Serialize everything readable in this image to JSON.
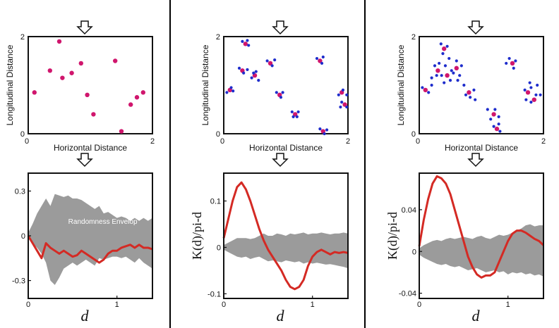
{
  "colors": {
    "points_parent": "#d0166d",
    "points_offspring": "#1e2dcc",
    "line": "#d42a24",
    "envelope": "#9b9b9b",
    "divider": "#000000"
  },
  "labels": {
    "ylabel_top": "Longitudinal Distance",
    "xlabel_top": "Horizontal Distance",
    "ylabel_bottom": "K(d)/pi-d",
    "xlabel_bottom": "d",
    "envelope_label": "Randomness Envelop"
  },
  "chart_data": [
    {
      "type": "scatter",
      "xlim": [
        0,
        2
      ],
      "ylim": [
        0,
        2
      ],
      "xticks": [
        "0",
        "2"
      ],
      "yticks": [
        "0",
        "2"
      ],
      "xlabel": "Horizontal Distance",
      "ylabel": "Longitudinal Distance",
      "series": [
        {
          "color": "parent",
          "points": [
            [
              0.1,
              0.85
            ],
            [
              0.35,
              1.3
            ],
            [
              0.5,
              1.9
            ],
            [
              0.55,
              1.15
            ],
            [
              0.7,
              1.25
            ],
            [
              0.85,
              1.45
            ],
            [
              0.95,
              0.8
            ],
            [
              1.05,
              0.4
            ],
            [
              1.4,
              1.5
            ],
            [
              1.5,
              0.05
            ],
            [
              1.65,
              0.6
            ],
            [
              1.75,
              0.75
            ],
            [
              1.85,
              0.85
            ]
          ]
        }
      ]
    },
    {
      "type": "scatter",
      "xlim": [
        0,
        2
      ],
      "ylim": [
        0,
        2
      ],
      "xticks": [
        "0",
        "2"
      ],
      "yticks": [
        "0",
        "2"
      ],
      "xlabel": "Horizontal Distance",
      "ylabel": "Longitudinal Distance",
      "series": [
        {
          "color": "parent",
          "points": [
            [
              0.1,
              0.9
            ],
            [
              0.3,
              1.3
            ],
            [
              0.5,
              1.2
            ],
            [
              0.75,
              1.45
            ],
            [
              0.9,
              0.8
            ],
            [
              1.15,
              0.4
            ],
            [
              1.55,
              1.5
            ],
            [
              1.6,
              0.05
            ],
            [
              1.9,
              0.85
            ],
            [
              1.95,
              0.6
            ],
            [
              0.35,
              1.85
            ]
          ]
        },
        {
          "color": "offspring",
          "points": [
            [
              0.05,
              0.85
            ],
            [
              0.12,
              0.95
            ],
            [
              0.15,
              0.88
            ],
            [
              0.25,
              1.35
            ],
            [
              0.32,
              1.25
            ],
            [
              0.38,
              1.32
            ],
            [
              0.45,
              1.15
            ],
            [
              0.52,
              1.28
            ],
            [
              0.56,
              1.1
            ],
            [
              0.48,
              1.25
            ],
            [
              0.7,
              1.5
            ],
            [
              0.78,
              1.4
            ],
            [
              0.82,
              1.52
            ],
            [
              0.85,
              0.85
            ],
            [
              0.92,
              0.75
            ],
            [
              0.95,
              0.85
            ],
            [
              1.1,
              0.45
            ],
            [
              1.18,
              0.35
            ],
            [
              1.2,
              0.45
            ],
            [
              1.12,
              0.35
            ],
            [
              1.5,
              1.55
            ],
            [
              1.58,
              1.45
            ],
            [
              1.6,
              1.58
            ],
            [
              1.55,
              0.1
            ],
            [
              1.62,
              0.0
            ],
            [
              1.66,
              0.08
            ],
            [
              1.85,
              0.8
            ],
            [
              1.92,
              0.9
            ],
            [
              1.98,
              0.8
            ],
            [
              1.9,
              0.65
            ],
            [
              1.98,
              0.55
            ],
            [
              1.88,
              0.55
            ],
            [
              0.3,
              1.9
            ],
            [
              0.4,
              1.82
            ],
            [
              0.38,
              1.92
            ]
          ]
        }
      ]
    },
    {
      "type": "scatter",
      "xlim": [
        0,
        2
      ],
      "ylim": [
        0,
        2
      ],
      "xticks": [
        "0",
        "2"
      ],
      "yticks": [
        "0",
        "2"
      ],
      "xlabel": "Horizontal Distance",
      "ylabel": "Longitudinal Distance",
      "series": [
        {
          "color": "parent",
          "points": [
            [
              0.1,
              0.9
            ],
            [
              0.3,
              1.3
            ],
            [
              0.45,
              1.2
            ],
            [
              0.6,
              1.35
            ],
            [
              0.8,
              0.85
            ],
            [
              1.2,
              0.4
            ],
            [
              1.5,
              1.45
            ],
            [
              1.25,
              0.1
            ],
            [
              1.75,
              0.85
            ],
            [
              1.85,
              0.7
            ],
            [
              0.4,
              1.75
            ]
          ]
        },
        {
          "color": "offspring",
          "points": [
            [
              0.05,
              0.95
            ],
            [
              0.15,
              0.85
            ],
            [
              0.2,
              1.0
            ],
            [
              0.25,
              1.4
            ],
            [
              0.32,
              1.45
            ],
            [
              0.36,
              1.2
            ],
            [
              0.28,
              1.2
            ],
            [
              0.4,
              1.05
            ],
            [
              0.5,
              1.1
            ],
            [
              0.52,
              1.3
            ],
            [
              0.42,
              1.4
            ],
            [
              0.6,
              1.5
            ],
            [
              0.65,
              1.2
            ],
            [
              0.68,
              1.4
            ],
            [
              0.55,
              1.25
            ],
            [
              0.72,
              1.0
            ],
            [
              0.75,
              0.8
            ],
            [
              0.82,
              0.75
            ],
            [
              0.88,
              0.9
            ],
            [
              0.9,
              0.7
            ],
            [
              1.1,
              0.5
            ],
            [
              1.15,
              0.3
            ],
            [
              1.22,
              0.5
            ],
            [
              1.28,
              0.35
            ],
            [
              1.45,
              1.55
            ],
            [
              1.55,
              1.5
            ],
            [
              1.52,
              1.35
            ],
            [
              1.4,
              1.45
            ],
            [
              1.2,
              0.15
            ],
            [
              1.3,
              0.05
            ],
            [
              1.28,
              0.2
            ],
            [
              1.7,
              0.9
            ],
            [
              1.8,
              0.95
            ],
            [
              1.88,
              0.8
            ],
            [
              1.72,
              0.7
            ],
            [
              1.8,
              0.65
            ],
            [
              1.9,
              1.0
            ],
            [
              1.95,
              0.8
            ],
            [
              1.78,
              1.05
            ],
            [
              0.35,
              1.85
            ],
            [
              0.45,
              1.8
            ],
            [
              0.38,
              1.65
            ],
            [
              0.48,
              1.55
            ],
            [
              0.2,
              1.15
            ],
            [
              0.62,
              1.1
            ]
          ]
        }
      ]
    },
    {
      "type": "line",
      "xlim": [
        0,
        1.4
      ],
      "ylim": [
        -0.42,
        0.42
      ],
      "yticks": [
        {
          "v": 0.3,
          "l": "0.3"
        },
        {
          "v": 0,
          "l": "0"
        },
        {
          "v": -0.3,
          "l": "-0.3"
        }
      ],
      "xticks": [
        {
          "v": 0,
          "l": "0"
        },
        {
          "v": 1,
          "l": "1"
        }
      ],
      "xlabel": "d",
      "envelope_label": "Randomness Envelop",
      "x": [
        0,
        0.05,
        0.1,
        0.15,
        0.2,
        0.25,
        0.3,
        0.35,
        0.4,
        0.45,
        0.5,
        0.55,
        0.6,
        0.65,
        0.7,
        0.75,
        0.8,
        0.85,
        0.9,
        0.95,
        1.0,
        1.05,
        1.1,
        1.15,
        1.2,
        1.25,
        1.3,
        1.35,
        1.4
      ],
      "values": [
        0,
        -0.05,
        -0.1,
        -0.15,
        -0.05,
        -0.08,
        -0.1,
        -0.12,
        -0.1,
        -0.12,
        -0.14,
        -0.13,
        -0.1,
        -0.12,
        -0.14,
        -0.16,
        -0.18,
        -0.16,
        -0.12,
        -0.1,
        -0.1,
        -0.08,
        -0.07,
        -0.06,
        -0.08,
        -0.06,
        -0.08,
        -0.08,
        -0.09
      ],
      "env_upper": [
        0.02,
        0.08,
        0.15,
        0.2,
        0.25,
        0.2,
        0.28,
        0.27,
        0.26,
        0.27,
        0.25,
        0.25,
        0.24,
        0.22,
        0.2,
        0.18,
        0.2,
        0.15,
        0.16,
        0.14,
        0.12,
        0.13,
        0.12,
        0.1,
        0.12,
        0.1,
        0.12,
        0.1,
        0.12
      ],
      "env_lower": [
        -0.02,
        -0.05,
        -0.08,
        -0.12,
        -0.18,
        -0.3,
        -0.33,
        -0.28,
        -0.22,
        -0.2,
        -0.18,
        -0.2,
        -0.18,
        -0.16,
        -0.18,
        -0.2,
        -0.15,
        -0.16,
        -0.15,
        -0.14,
        -0.14,
        -0.15,
        -0.14,
        -0.16,
        -0.18,
        -0.15,
        -0.18,
        -0.2,
        -0.22
      ]
    },
    {
      "type": "line",
      "xlim": [
        0,
        1.4
      ],
      "ylim": [
        -0.11,
        0.16
      ],
      "yticks": [
        {
          "v": 0.1,
          "l": "0.1"
        },
        {
          "v": 0,
          "l": "0"
        },
        {
          "v": -0.1,
          "l": "-0.1"
        }
      ],
      "xticks": [
        {
          "v": 0,
          "l": "0"
        },
        {
          "v": 1,
          "l": "1"
        }
      ],
      "xlabel": "d",
      "ylabel": "K(d)/pi-d",
      "x": [
        0,
        0.05,
        0.1,
        0.15,
        0.2,
        0.25,
        0.3,
        0.35,
        0.4,
        0.45,
        0.5,
        0.55,
        0.6,
        0.65,
        0.7,
        0.75,
        0.8,
        0.85,
        0.9,
        0.95,
        1.0,
        1.05,
        1.1,
        1.15,
        1.2,
        1.25,
        1.3,
        1.35,
        1.4
      ],
      "values": [
        0.02,
        0.06,
        0.1,
        0.13,
        0.14,
        0.125,
        0.1,
        0.07,
        0.04,
        0.015,
        -0.005,
        -0.02,
        -0.035,
        -0.05,
        -0.07,
        -0.085,
        -0.09,
        -0.085,
        -0.07,
        -0.04,
        -0.02,
        -0.01,
        -0.005,
        -0.01,
        -0.015,
        -0.01,
        -0.012,
        -0.01,
        -0.012
      ],
      "env_upper": [
        0.005,
        0.01,
        0.015,
        0.02,
        0.02,
        0.02,
        0.018,
        0.02,
        0.025,
        0.03,
        0.025,
        0.025,
        0.03,
        0.028,
        0.025,
        0.03,
        0.028,
        0.03,
        0.032,
        0.028,
        0.03,
        0.03,
        0.032,
        0.03,
        0.028,
        0.03,
        0.03,
        0.032,
        0.03
      ],
      "env_lower": [
        -0.005,
        -0.01,
        -0.015,
        -0.02,
        -0.022,
        -0.02,
        -0.025,
        -0.022,
        -0.02,
        -0.025,
        -0.03,
        -0.028,
        -0.03,
        -0.032,
        -0.028,
        -0.03,
        -0.032,
        -0.03,
        -0.035,
        -0.032,
        -0.035,
        -0.033,
        -0.035,
        -0.037,
        -0.036,
        -0.038,
        -0.04,
        -0.042,
        -0.045
      ]
    },
    {
      "type": "line",
      "xlim": [
        0,
        1.4
      ],
      "ylim": [
        -0.045,
        0.075
      ],
      "yticks": [
        {
          "v": 0.04,
          "l": "0.04"
        },
        {
          "v": 0,
          "l": "0"
        },
        {
          "v": -0.04,
          "l": "-0.04"
        }
      ],
      "xticks": [
        {
          "v": 0,
          "l": "0"
        },
        {
          "v": 1,
          "l": "1"
        }
      ],
      "xlabel": "d",
      "ylabel": "K(d)/pi-d",
      "x": [
        0,
        0.05,
        0.1,
        0.15,
        0.2,
        0.25,
        0.3,
        0.35,
        0.4,
        0.45,
        0.5,
        0.55,
        0.6,
        0.65,
        0.7,
        0.75,
        0.8,
        0.85,
        0.9,
        0.95,
        1.0,
        1.05,
        1.1,
        1.15,
        1.2,
        1.25,
        1.3,
        1.35,
        1.4
      ],
      "values": [
        0.005,
        0.03,
        0.05,
        0.065,
        0.072,
        0.07,
        0.065,
        0.055,
        0.04,
        0.025,
        0.01,
        -0.005,
        -0.015,
        -0.022,
        -0.025,
        -0.023,
        -0.023,
        -0.02,
        -0.01,
        0.0,
        0.01,
        0.017,
        0.02,
        0.02,
        0.018,
        0.015,
        0.012,
        0.01,
        0.006
      ],
      "env_upper": [
        0.003,
        0.006,
        0.008,
        0.01,
        0.011,
        0.01,
        0.012,
        0.013,
        0.012,
        0.013,
        0.014,
        0.013,
        0.012,
        0.014,
        0.015,
        0.013,
        0.012,
        0.014,
        0.016,
        0.015,
        0.016,
        0.018,
        0.02,
        0.022,
        0.025,
        0.026,
        0.024,
        0.025,
        0.025
      ],
      "env_lower": [
        -0.003,
        -0.006,
        -0.008,
        -0.01,
        -0.012,
        -0.013,
        -0.012,
        -0.014,
        -0.015,
        -0.014,
        -0.016,
        -0.018,
        -0.017,
        -0.016,
        -0.018,
        -0.02,
        -0.019,
        -0.018,
        -0.02,
        -0.019,
        -0.022,
        -0.02,
        -0.021,
        -0.02,
        -0.022,
        -0.021,
        -0.023,
        -0.022,
        -0.024
      ]
    }
  ]
}
